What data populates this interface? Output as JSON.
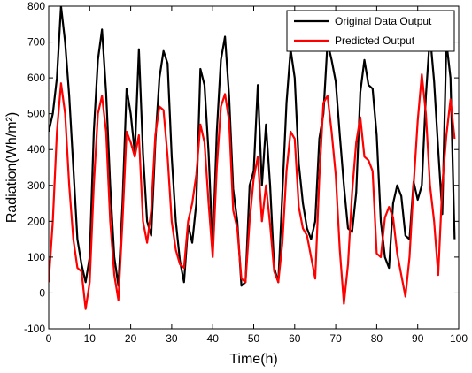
{
  "chart_data": {
    "type": "line",
    "xlabel": "Time(h)",
    "ylabel": "Radiation(Wh/m²)",
    "xlim": [
      0,
      100
    ],
    "ylim": [
      -100,
      800
    ],
    "xticks": [
      0,
      10,
      20,
      30,
      40,
      50,
      60,
      70,
      80,
      90,
      100
    ],
    "yticks": [
      -100,
      0,
      100,
      200,
      300,
      400,
      500,
      600,
      700,
      800
    ],
    "grid": false,
    "legend_position": "top-right",
    "series": [
      {
        "name": "Original Data Output",
        "color": "#000000",
        "x": [
          0,
          1,
          2,
          3,
          4,
          5,
          6,
          7,
          8,
          9,
          10,
          11,
          12,
          13,
          14,
          15,
          16,
          17,
          18,
          19,
          20,
          21,
          22,
          23,
          24,
          25,
          26,
          27,
          28,
          29,
          30,
          31,
          32,
          33,
          34,
          35,
          36,
          37,
          38,
          39,
          40,
          41,
          42,
          43,
          44,
          45,
          46,
          47,
          48,
          49,
          50,
          51,
          52,
          53,
          54,
          55,
          56,
          57,
          58,
          59,
          60,
          61,
          62,
          63,
          64,
          65,
          66,
          67,
          68,
          69,
          70,
          71,
          72,
          73,
          74,
          75,
          76,
          77,
          78,
          79,
          80,
          81,
          82,
          83,
          84,
          85,
          86,
          87,
          88,
          89,
          90,
          91,
          92,
          93,
          94,
          95,
          96,
          97,
          98,
          99
        ],
        "y": [
          450,
          500,
          600,
          800,
          700,
          550,
          350,
          150,
          80,
          30,
          100,
          450,
          650,
          735,
          560,
          300,
          100,
          20,
          250,
          570,
          500,
          390,
          680,
          390,
          200,
          160,
          420,
          600,
          675,
          640,
          380,
          200,
          90,
          30,
          190,
          140,
          250,
          625,
          580,
          390,
          120,
          450,
          650,
          715,
          550,
          290,
          200,
          20,
          30,
          300,
          340,
          580,
          300,
          470,
          300,
          70,
          30,
          280,
          530,
          680,
          600,
          360,
          250,
          180,
          150,
          200,
          430,
          500,
          700,
          650,
          590,
          440,
          300,
          180,
          170,
          280,
          560,
          650,
          580,
          570,
          440,
          200,
          100,
          70,
          250,
          300,
          270,
          160,
          150,
          310,
          260,
          300,
          550,
          720,
          590,
          400,
          220,
          700,
          600,
          150
        ]
      },
      {
        "name": "Predicted Output",
        "color": "#ff0000",
        "x": [
          0,
          1,
          2,
          3,
          4,
          5,
          6,
          7,
          8,
          9,
          10,
          11,
          12,
          13,
          14,
          15,
          16,
          17,
          18,
          19,
          20,
          21,
          22,
          23,
          24,
          25,
          26,
          27,
          28,
          29,
          30,
          31,
          32,
          33,
          34,
          35,
          36,
          37,
          38,
          39,
          40,
          41,
          42,
          43,
          44,
          45,
          46,
          47,
          48,
          49,
          50,
          51,
          52,
          53,
          54,
          55,
          56,
          57,
          58,
          59,
          60,
          61,
          62,
          63,
          64,
          65,
          66,
          67,
          68,
          69,
          70,
          71,
          72,
          73,
          74,
          75,
          76,
          77,
          78,
          79,
          80,
          81,
          82,
          83,
          84,
          85,
          86,
          87,
          88,
          89,
          90,
          91,
          92,
          93,
          94,
          95,
          96,
          97,
          98,
          99
        ],
        "y": [
          30,
          200,
          450,
          585,
          500,
          300,
          150,
          70,
          60,
          -45,
          30,
          300,
          500,
          550,
          450,
          200,
          50,
          -20,
          200,
          450,
          420,
          380,
          440,
          200,
          140,
          230,
          440,
          520,
          510,
          380,
          200,
          120,
          80,
          70,
          200,
          250,
          330,
          470,
          420,
          250,
          100,
          350,
          520,
          555,
          480,
          230,
          180,
          40,
          30,
          200,
          320,
          380,
          200,
          300,
          190,
          60,
          30,
          140,
          340,
          450,
          430,
          240,
          180,
          160,
          100,
          40,
          320,
          530,
          550,
          450,
          330,
          120,
          -30,
          80,
          280,
          420,
          490,
          380,
          370,
          340,
          110,
          100,
          210,
          240,
          210,
          110,
          50,
          -10,
          100,
          300,
          480,
          610,
          500,
          300,
          200,
          50,
          300,
          440,
          540,
          430
        ]
      }
    ]
  }
}
